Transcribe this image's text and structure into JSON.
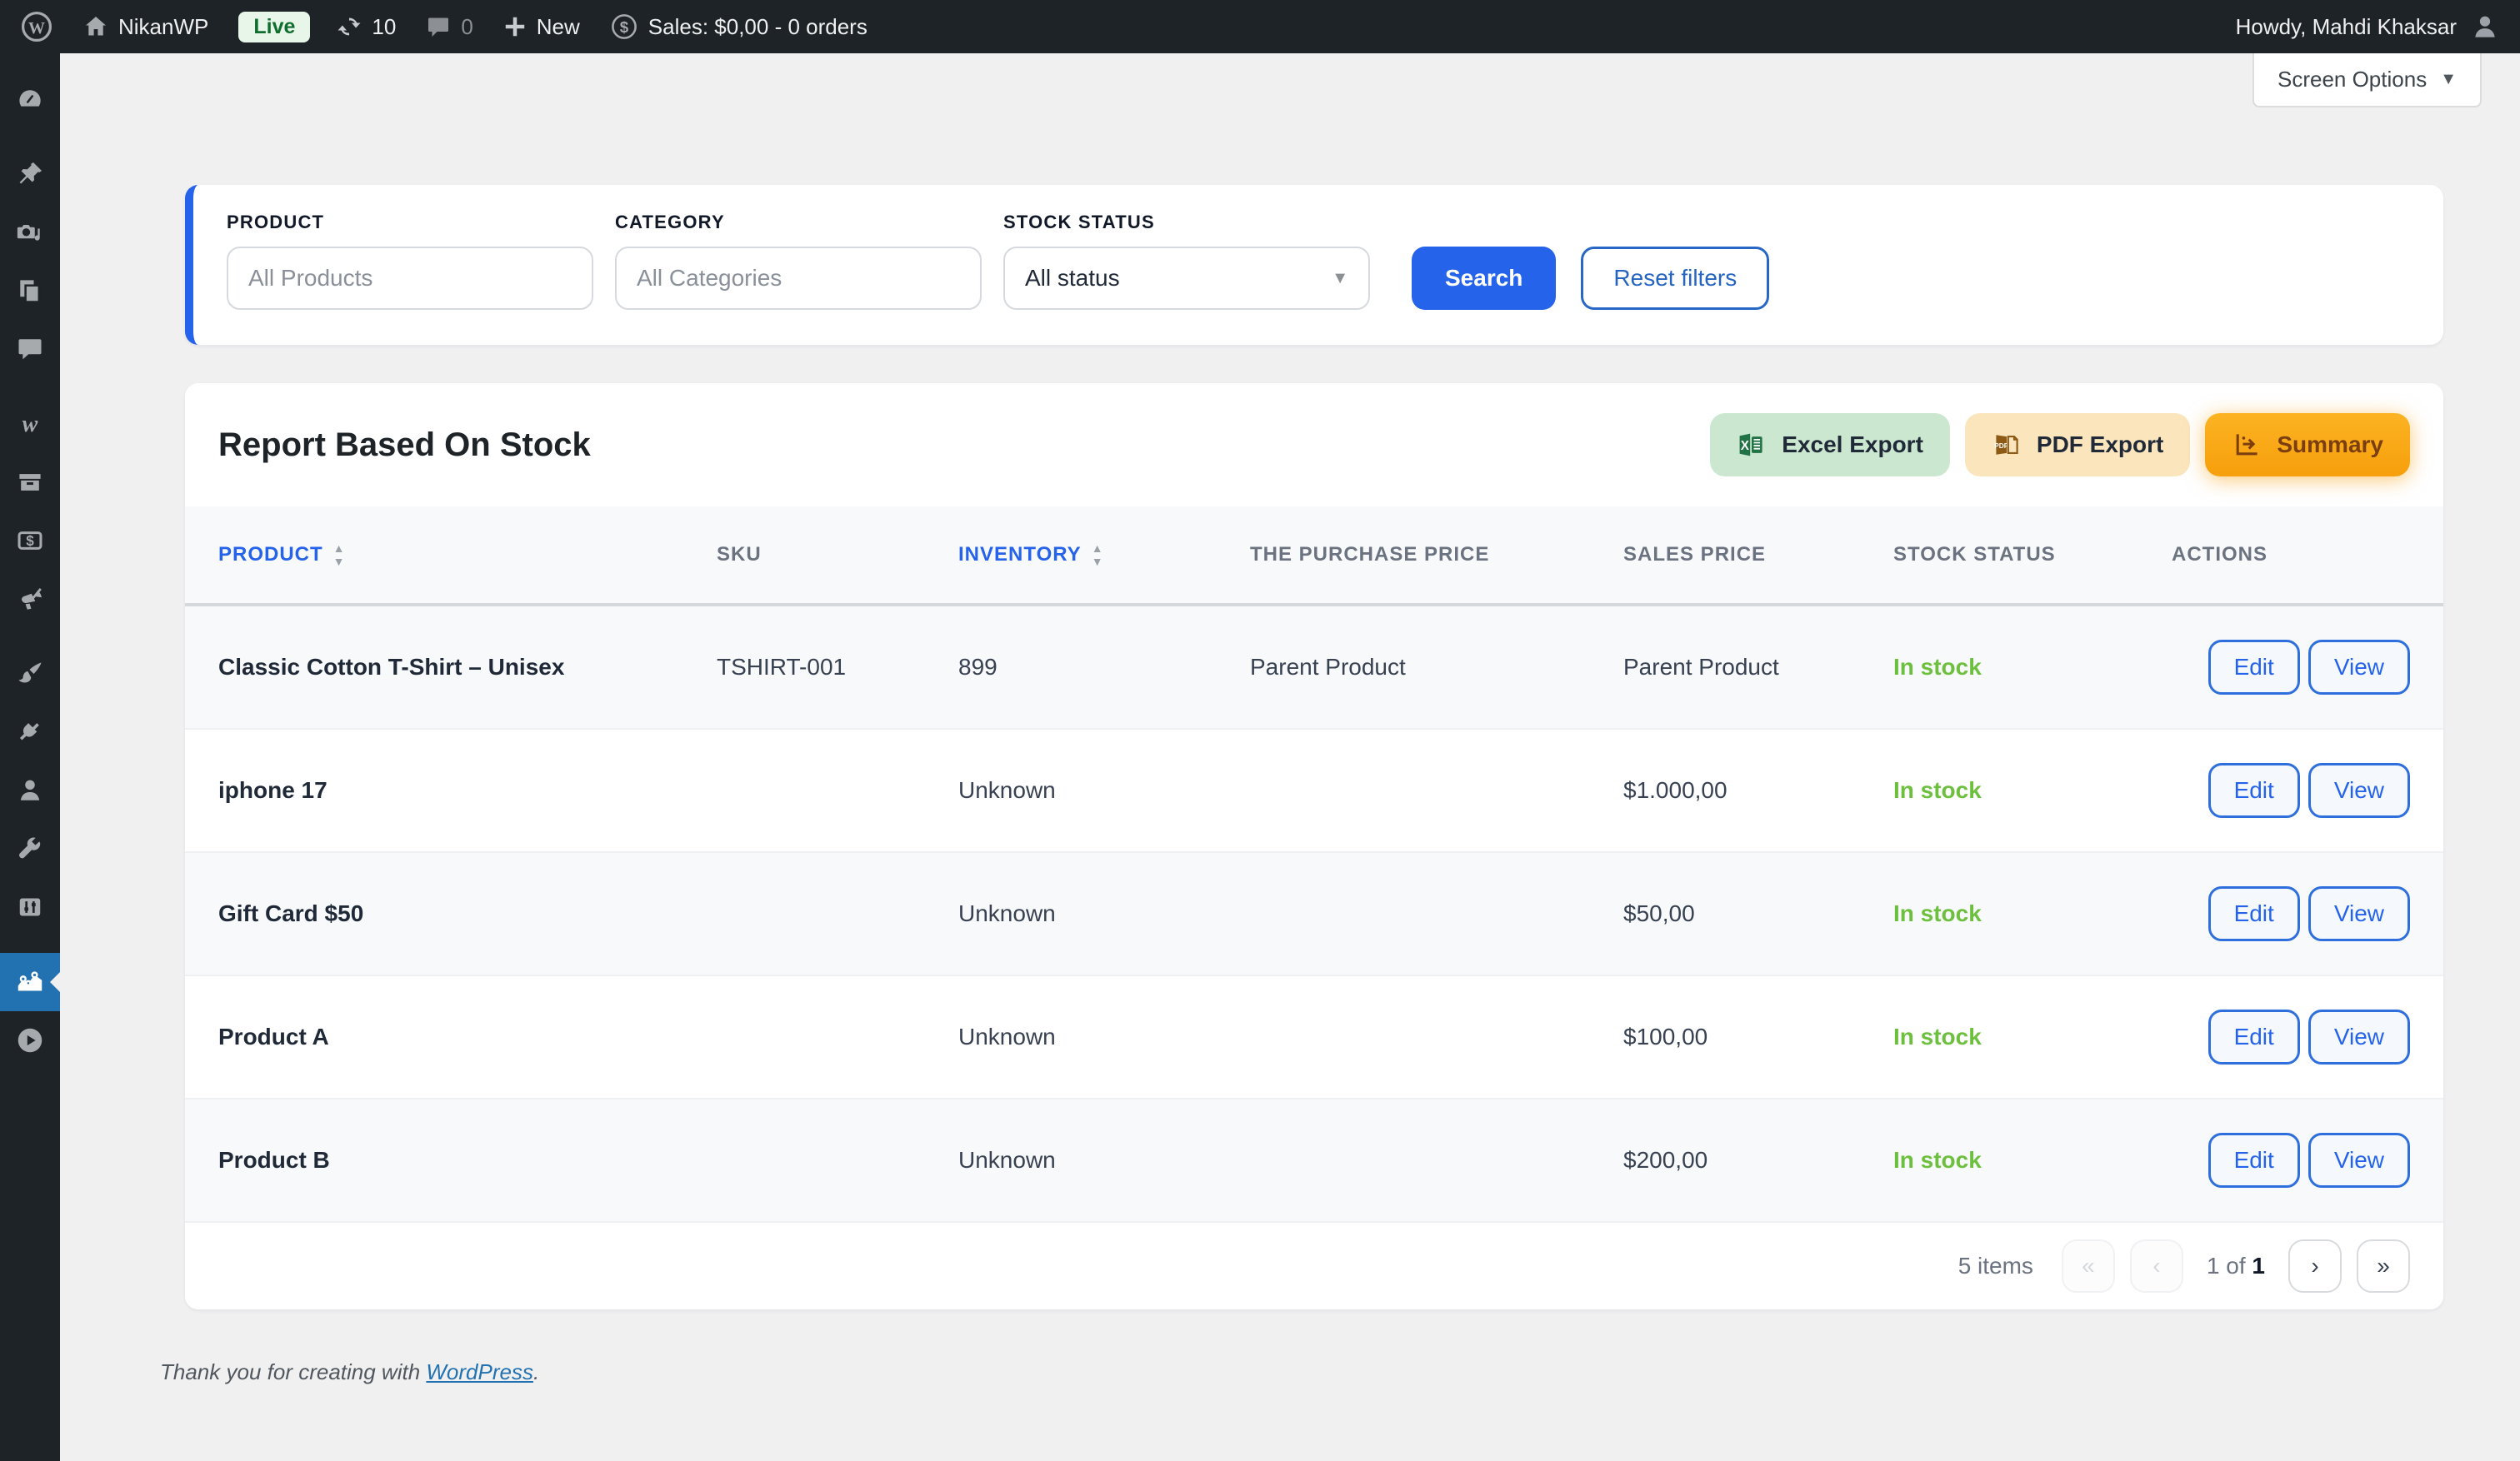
{
  "admin_bar": {
    "site_name": "NikanWP",
    "live_badge": "Live",
    "updates_count": "10",
    "comments_count": "0",
    "new_label": "New",
    "sales_label": "Sales: $0,00 - 0 orders",
    "howdy": "Howdy, Mahdi Khaksar"
  },
  "screen_options": {
    "label": "Screen Options",
    "caret": "▼"
  },
  "sidebar": {
    "items": [
      {
        "name": "dashboard"
      },
      {
        "name": "posts"
      },
      {
        "name": "media"
      },
      {
        "name": "pages"
      },
      {
        "name": "comments"
      },
      {
        "name": "woocommerce"
      },
      {
        "name": "products"
      },
      {
        "name": "payments"
      },
      {
        "name": "marketing"
      },
      {
        "name": "appearance"
      },
      {
        "name": "plugins"
      },
      {
        "name": "users"
      },
      {
        "name": "tools"
      },
      {
        "name": "settings"
      },
      {
        "name": "stock-report",
        "active": true
      },
      {
        "name": "video"
      }
    ]
  },
  "filters": {
    "product_label": "PRODUCT",
    "product_placeholder": "All Products",
    "category_label": "CATEGORY",
    "category_placeholder": "All Categories",
    "stock_label": "STOCK STATUS",
    "stock_value": "All status",
    "stock_caret": "▼",
    "search_label": "Search",
    "reset_label": "Reset filters"
  },
  "report": {
    "title": "Report Based On Stock",
    "excel_label": "Excel Export",
    "pdf_label": "PDF Export",
    "summary_label": "Summary",
    "columns": [
      {
        "label": "Product",
        "sortable": true
      },
      {
        "label": "SKU",
        "sortable": false
      },
      {
        "label": "Inventory",
        "sortable": true
      },
      {
        "label": "The Purchase Price",
        "sortable": false
      },
      {
        "label": "Sales Price",
        "sortable": false
      },
      {
        "label": "Stock Status",
        "sortable": false
      },
      {
        "label": "Actions",
        "sortable": false
      }
    ],
    "rows": [
      {
        "product": "Classic Cotton T-Shirt – Unisex",
        "sku": "TSHIRT-001",
        "inventory": "899",
        "purchase_price": "Parent Product",
        "sales_price": "Parent Product",
        "stock_status": "In stock",
        "actions": [
          "Edit",
          "View"
        ]
      },
      {
        "product": "iphone 17",
        "sku": "",
        "inventory": "Unknown",
        "purchase_price": "",
        "sales_price": "$1.000,00",
        "stock_status": "In stock",
        "actions": [
          "Edit",
          "View"
        ]
      },
      {
        "product": "Gift Card $50",
        "sku": "",
        "inventory": "Unknown",
        "purchase_price": "",
        "sales_price": "$50,00",
        "stock_status": "In stock",
        "actions": [
          "Edit",
          "View"
        ]
      },
      {
        "product": "Product A",
        "sku": "",
        "inventory": "Unknown",
        "purchase_price": "",
        "sales_price": "$100,00",
        "stock_status": "In stock",
        "actions": [
          "Edit",
          "View"
        ]
      },
      {
        "product": "Product B",
        "sku": "",
        "inventory": "Unknown",
        "purchase_price": "",
        "sales_price": "$200,00",
        "stock_status": "In stock",
        "actions": [
          "Edit",
          "View"
        ]
      }
    ],
    "pagination": {
      "items_text": "5 items",
      "first": "«",
      "prev": "‹",
      "page_text": "1 of",
      "page_total": "1",
      "next": "›",
      "last": "»"
    }
  },
  "footer": {
    "prefix": "Thank you for creating with ",
    "link": "WordPress",
    "suffix": "."
  },
  "colors": {
    "admin_dark": "#1d2327",
    "page_bg": "#f0f0f1",
    "primary_blue": "#2563eb",
    "active_menu_blue": "#2271b1",
    "in_stock_green": "#6dc03e",
    "excel_bg": "#cbe7cf",
    "pdf_bg": "#fbe5bd",
    "summary_orange": "#f9a70f",
    "live_badge_bg": "#e8f6e9",
    "live_badge_text": "#0f6e2e"
  }
}
